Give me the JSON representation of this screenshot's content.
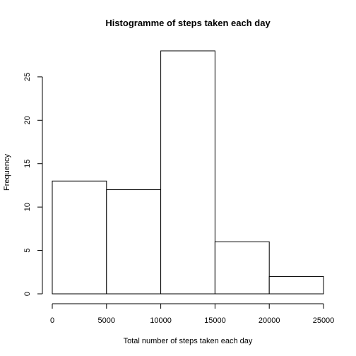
{
  "chart_data": {
    "type": "bar",
    "title": "Histogramme of steps taken each day",
    "xlabel": "Total number of steps taken each day",
    "ylabel": "Frequency",
    "bins": [
      {
        "from": 0,
        "to": 5000,
        "value": 13
      },
      {
        "from": 5000,
        "to": 10000,
        "value": 12
      },
      {
        "from": 10000,
        "to": 15000,
        "value": 28
      },
      {
        "from": 15000,
        "to": 20000,
        "value": 6
      },
      {
        "from": 20000,
        "to": 25000,
        "value": 2
      }
    ],
    "xlim": [
      0,
      25000
    ],
    "ylim": [
      0,
      28
    ],
    "xticks": [
      0,
      5000,
      10000,
      15000,
      20000,
      25000
    ],
    "yticks": [
      0,
      5,
      10,
      15,
      20,
      25
    ],
    "grid": false,
    "bar_fill": "#ffffff",
    "bar_stroke": "#000000"
  }
}
